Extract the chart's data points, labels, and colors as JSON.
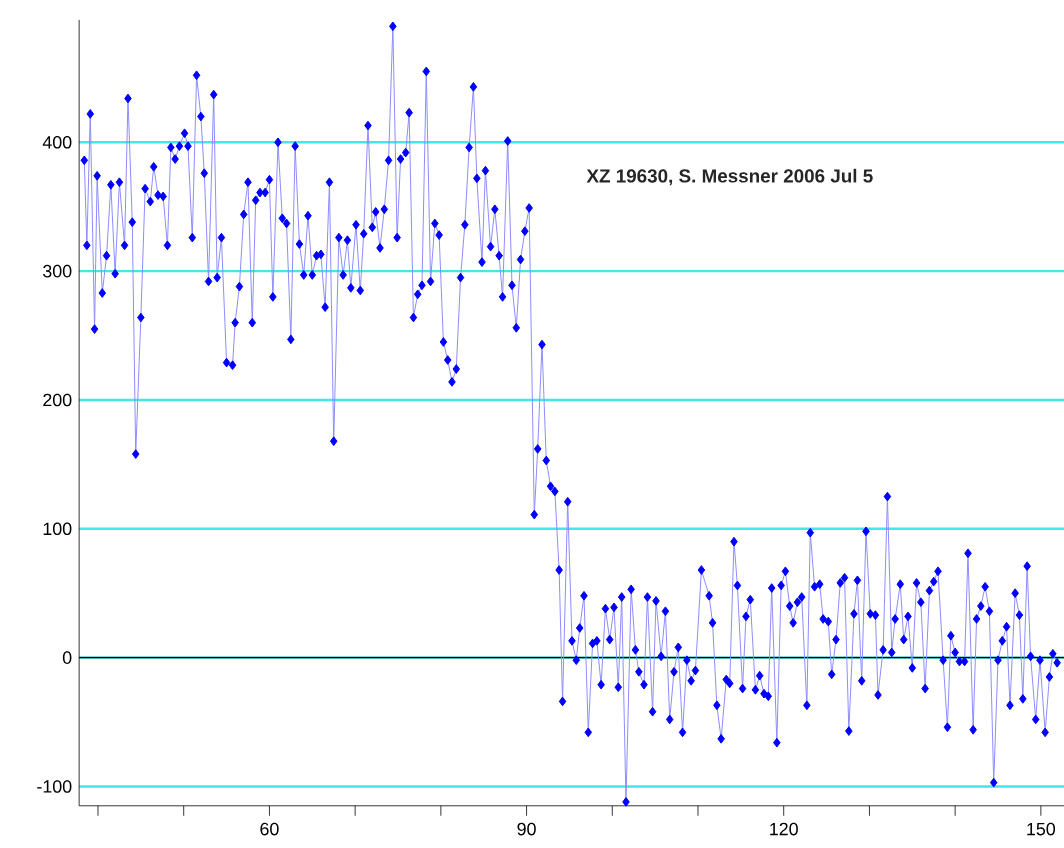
{
  "chart_data": {
    "type": "line",
    "annotations": [
      "XZ 19630,  S. Messner  2006 Jul 5"
    ],
    "series": [
      {
        "color": "#0000ff",
        "x": [
          38.4,
          38.7,
          39.1,
          39.6,
          39.9,
          40.5,
          41.0,
          41.5,
          42.0,
          42.5,
          43.1,
          43.5,
          44.0,
          44.4,
          45.0,
          45.5,
          46.1,
          46.5,
          47.0,
          47.6,
          48.1,
          48.5,
          49.0,
          49.5,
          50.1,
          50.5,
          51.0,
          51.5,
          52.0,
          52.4,
          52.9,
          53.5,
          53.9,
          54.4,
          55.0,
          55.7,
          56.0,
          56.5,
          57.0,
          57.5,
          58.0,
          58.4,
          58.9,
          59.5,
          60.0,
          60.4,
          61.0,
          61.5,
          62.0,
          62.5,
          63.0,
          63.5,
          64.0,
          64.5,
          65.0,
          65.5,
          66.0,
          66.5,
          67.0,
          67.5,
          68.1,
          68.6,
          69.1,
          69.5,
          70.1,
          70.6,
          71.0,
          71.5,
          72.0,
          72.4,
          72.9,
          73.4,
          73.9,
          74.4,
          74.9,
          75.3,
          75.9,
          76.3,
          76.8,
          77.3,
          77.8,
          78.3,
          78.8,
          79.3,
          79.8,
          80.3,
          80.8,
          81.3,
          81.8,
          82.3,
          82.8,
          83.3,
          83.8,
          84.2,
          84.8,
          85.2,
          85.8,
          86.3,
          86.8,
          87.2,
          87.8,
          88.3,
          88.8,
          89.3,
          89.8,
          90.3,
          90.9,
          91.3,
          91.8,
          92.3,
          92.8,
          93.3,
          93.8,
          94.2,
          94.8,
          95.3,
          95.8,
          96.2,
          96.7,
          97.2,
          97.7,
          98.2,
          98.7,
          99.2,
          99.7,
          100.2,
          100.7,
          101.1,
          101.6,
          102.2,
          102.7,
          103.1,
          103.7,
          104.1,
          104.7,
          105.1,
          105.7,
          106.2,
          106.7,
          107.2,
          107.7,
          108.2,
          108.7,
          109.2,
          109.7,
          110.4,
          111.3,
          111.7,
          112.2,
          112.7,
          113.3,
          113.7,
          114.2,
          114.6,
          115.2,
          115.6,
          116.1,
          116.7,
          117.2,
          117.7,
          118.2,
          118.6,
          119.2,
          119.7,
          120.2,
          120.7,
          121.1,
          121.6,
          122.1,
          122.7,
          123.1,
          123.6,
          124.2,
          124.6,
          125.2,
          125.6,
          126.1,
          126.6,
          127.1,
          127.6,
          128.2,
          128.6,
          129.1,
          129.6,
          130.1,
          130.7,
          131.0,
          131.6,
          132.1,
          132.6,
          133.0,
          133.6,
          134.0,
          134.5,
          135.0,
          135.5,
          136.0,
          136.5,
          137.0,
          137.5,
          138.0,
          138.6,
          139.1,
          139.5,
          140.0,
          140.5,
          141.1,
          141.5,
          142.1,
          142.5,
          143.0,
          143.5,
          144.0,
          144.5,
          145.0,
          145.5,
          146.0,
          146.4,
          147.0,
          147.5,
          147.9,
          148.4,
          148.8,
          149.4,
          149.9,
          150.5,
          151.0,
          151.4,
          151.9
        ],
        "values": [
          386,
          320,
          422,
          255,
          374,
          283,
          312,
          367,
          298,
          369,
          320,
          434,
          338,
          158,
          264,
          364,
          354,
          381,
          359,
          358,
          320,
          396,
          387,
          397,
          407,
          397,
          326,
          452,
          420,
          376,
          292,
          437,
          295,
          326,
          229,
          227,
          260,
          288,
          344,
          369,
          260,
          355,
          361,
          361,
          371,
          280,
          400,
          341,
          337,
          247,
          397,
          321,
          297,
          343,
          297,
          312,
          313,
          272,
          369,
          168,
          326,
          297,
          324,
          287,
          336,
          285,
          329,
          413,
          334,
          346,
          318,
          348,
          386,
          490,
          326,
          387,
          392,
          423,
          264,
          282,
          289,
          455,
          292,
          337,
          328,
          245,
          231,
          214,
          224,
          295,
          336,
          396,
          443,
          372,
          307,
          378,
          319,
          348,
          312,
          280,
          401,
          289,
          256,
          309,
          331,
          349,
          111,
          162,
          243,
          153,
          133,
          129,
          68,
          -34,
          121,
          13,
          -2,
          23,
          48,
          -58,
          11,
          13,
          -21,
          38,
          14,
          39,
          -23,
          47,
          -112,
          53,
          6,
          -11,
          -21,
          47,
          -42,
          44,
          1,
          36,
          -48,
          -11,
          8,
          -58,
          -2,
          -18,
          -10,
          68,
          48,
          27,
          -37,
          -63,
          -17,
          -20,
          90,
          56,
          -24,
          32,
          45,
          -25,
          -14,
          -28,
          -30,
          54,
          -66,
          56,
          67,
          40,
          27,
          43,
          47,
          -37,
          97,
          55,
          57,
          30,
          28,
          -13,
          14,
          58,
          62,
          -57,
          34,
          60,
          -18,
          98,
          34,
          33,
          -29,
          6,
          125,
          4,
          30,
          57,
          14,
          32,
          -8,
          58,
          43,
          -24,
          52,
          59,
          67,
          -2,
          -54,
          17,
          4,
          -3,
          -3,
          81,
          -56,
          30,
          40,
          55,
          36,
          -97,
          -2,
          13,
          24,
          -37,
          50,
          33,
          -32,
          71,
          1,
          -48,
          -2,
          -58,
          -15,
          3,
          -4
        ]
      }
    ],
    "xlim": [
      37.8,
      152.7
    ],
    "ylim": [
      -115,
      495
    ],
    "xticks": [
      {
        "value": 40,
        "label": null
      },
      {
        "value": 50,
        "label": null
      },
      60,
      {
        "value": 70,
        "label": null
      },
      {
        "value": 80,
        "label": null
      },
      90,
      {
        "value": 100,
        "label": null
      },
      {
        "value": 110,
        "label": null
      },
      120,
      {
        "value": 130,
        "label": null
      },
      {
        "value": 140,
        "label": null
      },
      150
    ],
    "yticks": [
      -100,
      0,
      100,
      200,
      300,
      400
    ],
    "grid": "y",
    "ref_lines": [
      {
        "axis": "y",
        "value": 0,
        "color": "#000000"
      }
    ],
    "line_style": "solid",
    "marker": "diamond"
  }
}
